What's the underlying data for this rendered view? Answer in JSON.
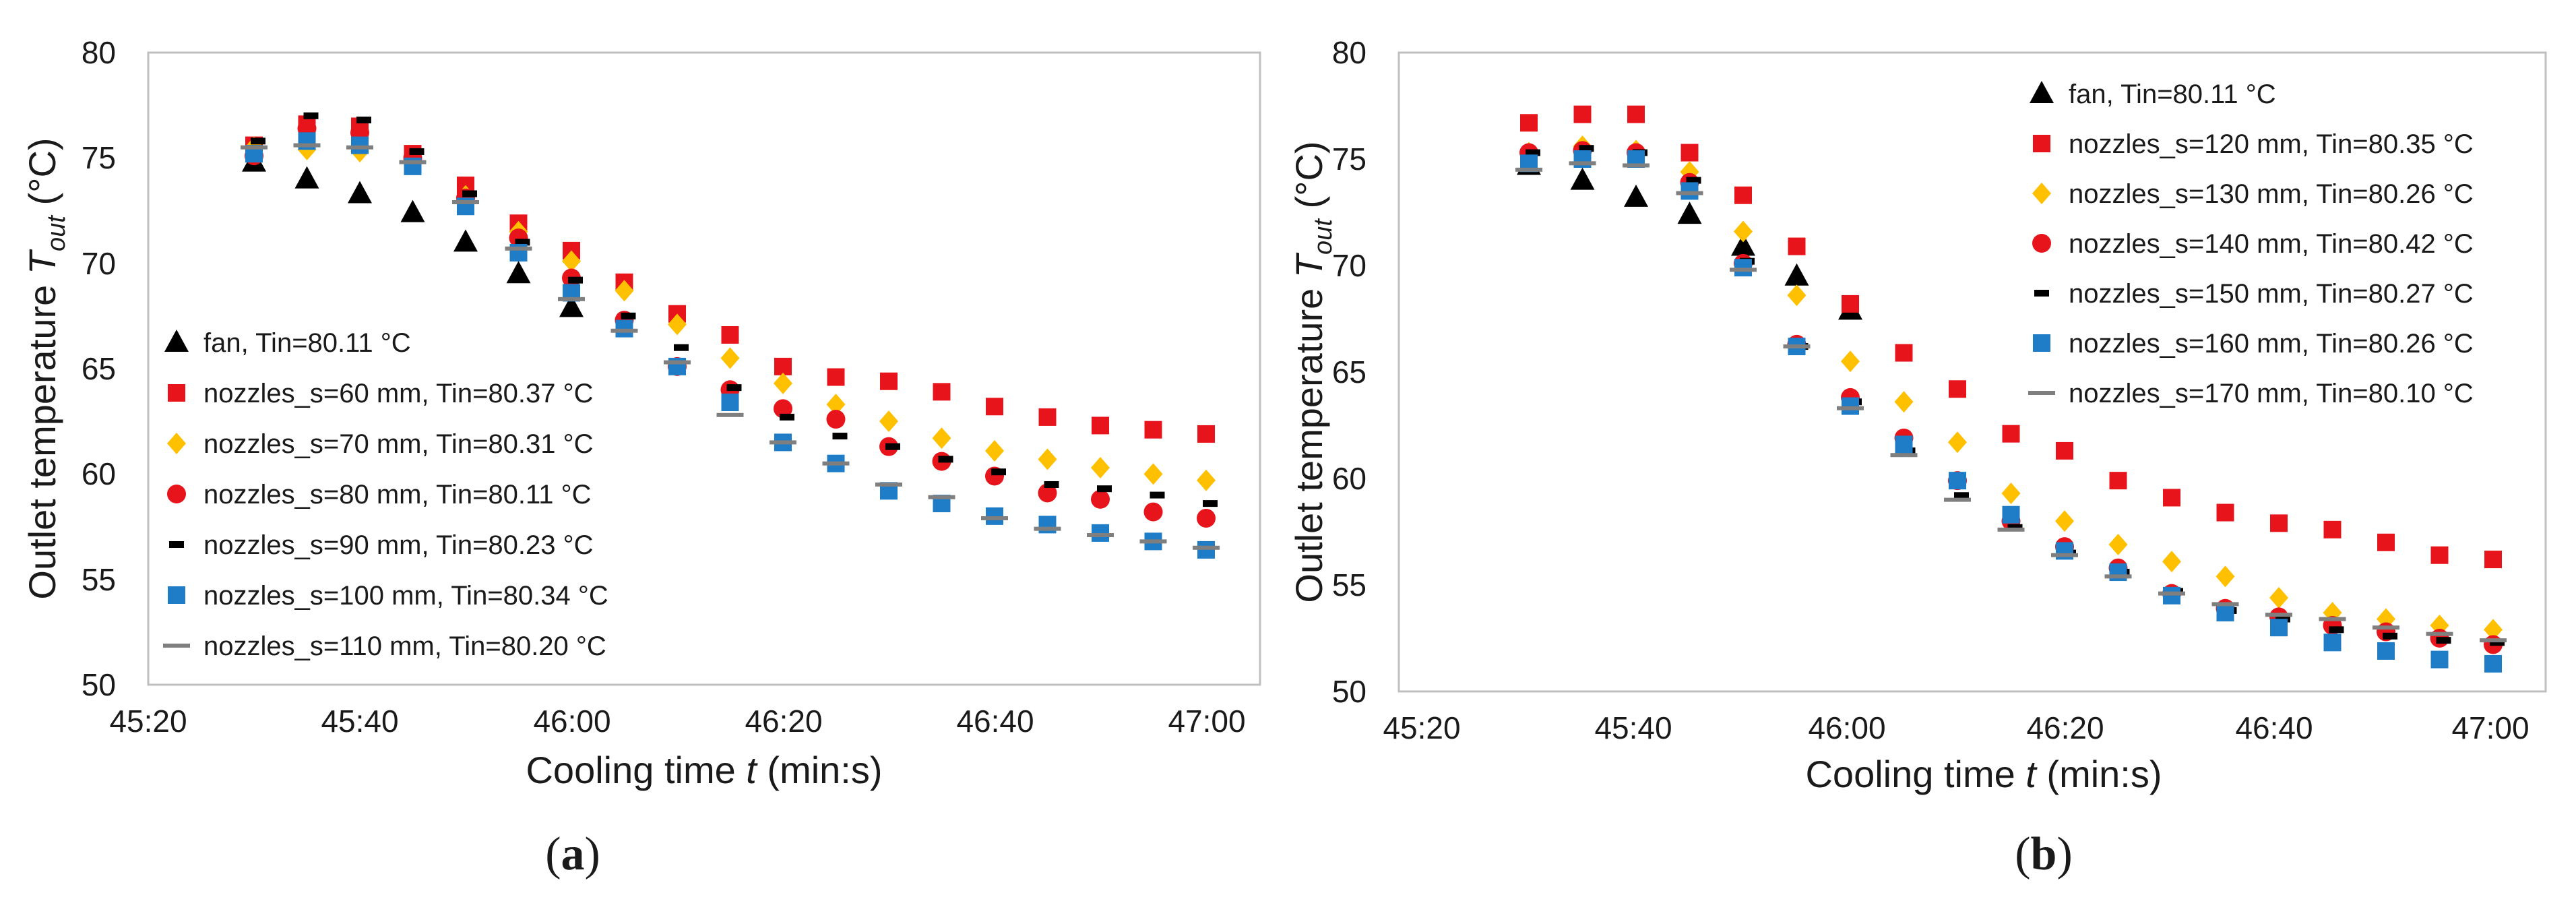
{
  "figure": {
    "colors": {
      "fan": "#000000",
      "red": "#E8141C",
      "yellow": "#FFC000",
      "black_dash": "#000000",
      "blue": "#1F7CC6",
      "gray": "#7F7F7F",
      "frame": "#BFBFBF"
    }
  },
  "chart_data": [
    {
      "type": "scatter",
      "panel_label": "(a)",
      "panel_label_parts": [
        "(",
        "a",
        ")"
      ],
      "xlabel_parts": [
        "Cooling time ",
        "t",
        " (min:s)"
      ],
      "ylabel_parts": [
        "Outlet temperature ",
        "T",
        "out",
        " (°C)"
      ],
      "x_unit": "seconds from 45:20",
      "xlim": [
        0,
        105
      ],
      "ylim": [
        50,
        80
      ],
      "x_ticks": [
        0,
        20,
        40,
        60,
        80,
        100
      ],
      "x_tick_labels": [
        "45:20",
        "45:40",
        "46:00",
        "46:20",
        "46:40",
        "47:00"
      ],
      "y_ticks": [
        50,
        55,
        60,
        65,
        70,
        75,
        80
      ],
      "y_tick_labels": [
        "50",
        "55",
        "60",
        "65",
        "70",
        "75",
        "80"
      ],
      "grid": false,
      "legend_position": "bottom-left",
      "series": [
        {
          "name": "fan, Tin=80.11 °C",
          "marker": "triangle",
          "color": "#000000",
          "x": [
            10,
            15,
            20,
            25,
            30,
            35,
            40
          ],
          "y": [
            74.8,
            74.0,
            73.3,
            72.4,
            71.0,
            69.5,
            67.9
          ]
        },
        {
          "name": "nozzles_s=60 mm, Tin=80.37 °C",
          "marker": "square",
          "color": "#E8141C",
          "x": [
            10,
            15,
            20,
            25,
            30,
            35,
            40,
            45,
            50,
            55,
            60,
            65,
            70,
            75,
            80,
            85,
            90,
            95,
            100
          ],
          "y": [
            75.6,
            76.6,
            76.5,
            75.2,
            73.7,
            71.9,
            70.6,
            69.1,
            67.6,
            66.6,
            65.1,
            64.6,
            64.4,
            63.9,
            63.2,
            62.7,
            62.3,
            62.1,
            61.9
          ]
        },
        {
          "name": "nozzles_s=70 mm, Tin=80.31 °C",
          "marker": "diamond",
          "color": "#FFC000",
          "x": [
            10,
            15,
            20,
            25,
            30,
            35,
            40,
            45,
            50,
            55,
            60,
            65,
            70,
            75,
            80,
            85,
            90,
            95,
            100
          ],
          "y": [
            75.5,
            75.4,
            75.3,
            74.9,
            73.2,
            71.5,
            70.1,
            68.7,
            67.1,
            65.5,
            64.3,
            63.3,
            62.5,
            61.7,
            61.1,
            60.7,
            60.3,
            60.0,
            59.7
          ]
        },
        {
          "name": "nozzles_s=80 mm, Tin=80.11 °C",
          "marker": "circle",
          "color": "#E8141C",
          "x": [
            10,
            15,
            20,
            25,
            30,
            35,
            40,
            45,
            50,
            55,
            60,
            65,
            70,
            75,
            80,
            85,
            90,
            95,
            100
          ],
          "y": [
            75.1,
            76.4,
            76.2,
            75.0,
            73.1,
            71.2,
            69.3,
            67.3,
            65.1,
            64.0,
            63.1,
            62.6,
            61.3,
            60.6,
            59.9,
            59.1,
            58.8,
            58.2,
            57.9
          ]
        },
        {
          "name": "nozzles_s=90 mm, Tin=80.23 °C",
          "marker": "dash",
          "color": "#000000",
          "x": [
            10,
            15,
            20,
            25,
            30,
            35,
            40,
            45,
            50,
            55,
            60,
            65,
            70,
            75,
            80,
            85,
            90,
            95,
            100
          ],
          "y": [
            75.8,
            77.0,
            76.8,
            75.3,
            73.3,
            71.0,
            69.2,
            67.5,
            66.0,
            64.1,
            62.7,
            61.8,
            61.3,
            60.7,
            60.1,
            59.5,
            59.3,
            59.0,
            58.6
          ]
        },
        {
          "name": "nozzles_s=100 mm, Tin=80.34 °C",
          "marker": "square",
          "color": "#1F7CC6",
          "x": [
            10,
            15,
            20,
            25,
            30,
            35,
            40,
            45,
            50,
            55,
            60,
            65,
            70,
            75,
            80,
            85,
            90,
            95,
            100
          ],
          "y": [
            75.2,
            75.8,
            75.6,
            74.6,
            72.7,
            70.5,
            68.6,
            66.9,
            65.1,
            63.4,
            61.5,
            60.5,
            59.2,
            58.6,
            58.0,
            57.6,
            57.2,
            56.8,
            56.4
          ]
        },
        {
          "name": "nozzles_s=110 mm, Tin=80.20 °C",
          "marker": "gray-dash",
          "color": "#7F7F7F",
          "x": [
            10,
            15,
            20,
            25,
            30,
            35,
            40,
            45,
            50,
            55,
            60,
            65,
            70,
            75,
            80,
            85,
            90,
            95,
            100
          ],
          "y": [
            75.5,
            75.6,
            75.5,
            74.8,
            72.9,
            70.7,
            68.3,
            66.8,
            65.3,
            62.8,
            61.5,
            60.5,
            59.5,
            58.9,
            57.9,
            57.4,
            57.1,
            56.8,
            56.5
          ]
        }
      ]
    },
    {
      "type": "scatter",
      "panel_label": "(b)",
      "panel_label_parts": [
        "(",
        "b",
        ")"
      ],
      "xlabel_parts": [
        "Cooling time ",
        "t",
        " (min:s)"
      ],
      "ylabel_parts": [
        "Outlet temperature ",
        "T",
        "out",
        " (°C)"
      ],
      "x_unit": "seconds from 45:20",
      "xlim": [
        0,
        105
      ],
      "ylim": [
        50,
        80
      ],
      "x_ticks": [
        0,
        20,
        40,
        60,
        80,
        100
      ],
      "x_tick_labels": [
        "45:20",
        "45:40",
        "46:00",
        "46:20",
        "46:40",
        "47:00"
      ],
      "y_ticks": [
        50,
        55,
        60,
        65,
        70,
        75,
        80
      ],
      "y_tick_labels": [
        "50",
        "55",
        "60",
        "65",
        "70",
        "75",
        "80"
      ],
      "grid": false,
      "legend_position": "top-right",
      "series": [
        {
          "name": "fan, Tin=80.11 °C",
          "marker": "triangle",
          "color": "#000000",
          "x": [
            10,
            15,
            20,
            25,
            30,
            35,
            40
          ],
          "y": [
            74.7,
            74.0,
            73.2,
            72.4,
            70.9,
            69.5,
            67.9
          ]
        },
        {
          "name": "nozzles_s=120 mm, Tin=80.35 °C",
          "marker": "square",
          "color": "#E8141C",
          "x": [
            10,
            15,
            20,
            25,
            30,
            35,
            40,
            45,
            50,
            55,
            60,
            65,
            70,
            75,
            80,
            85,
            90,
            95,
            100
          ],
          "y": [
            76.7,
            77.1,
            77.1,
            75.3,
            73.3,
            70.9,
            68.2,
            65.9,
            64.2,
            62.1,
            61.3,
            59.9,
            59.1,
            58.4,
            57.9,
            57.6,
            57.0,
            56.4,
            56.2
          ]
        },
        {
          "name": "nozzles_s=130 mm, Tin=80.26 °C",
          "marker": "diamond",
          "color": "#FFC000",
          "x": [
            10,
            15,
            20,
            25,
            30,
            35,
            40,
            45,
            50,
            55,
            60,
            65,
            70,
            75,
            80,
            85,
            90,
            95,
            100
          ],
          "y": [
            75.3,
            75.6,
            75.4,
            74.4,
            71.6,
            68.6,
            65.5,
            63.6,
            61.7,
            59.3,
            58.0,
            56.9,
            56.1,
            55.4,
            54.4,
            53.7,
            53.4,
            53.1,
            52.9
          ]
        },
        {
          "name": "nozzles_s=140 mm, Tin=80.42 °C",
          "marker": "circle",
          "color": "#E8141C",
          "x": [
            10,
            15,
            20,
            25,
            30,
            35,
            40,
            45,
            50,
            55,
            60,
            65,
            70,
            75,
            80,
            85,
            90,
            95,
            100
          ],
          "y": [
            75.3,
            75.4,
            75.3,
            73.9,
            70.1,
            66.3,
            63.8,
            61.9,
            59.9,
            58.0,
            56.8,
            55.8,
            54.6,
            53.9,
            53.5,
            53.1,
            52.8,
            52.5,
            52.2
          ]
        },
        {
          "name": "nozzles_s=150 mm, Tin=80.27 °C",
          "marker": "dash",
          "color": "#000000",
          "x": [
            10,
            15,
            20,
            25,
            30,
            35,
            40,
            45,
            50,
            55,
            60,
            65,
            70,
            75,
            80,
            85,
            90,
            95,
            100
          ],
          "y": [
            75.3,
            75.5,
            75.3,
            74.0,
            70.2,
            66.2,
            63.6,
            61.3,
            59.2,
            57.7,
            56.5,
            55.6,
            54.7,
            53.8,
            53.4,
            52.9,
            52.6,
            52.4,
            52.3
          ]
        },
        {
          "name": "nozzles_s=160 mm, Tin=80.26 °C",
          "marker": "square",
          "color": "#1F7CC6",
          "x": [
            10,
            15,
            20,
            25,
            30,
            35,
            40,
            45,
            50,
            55,
            60,
            65,
            70,
            75,
            80,
            85,
            90,
            95,
            100
          ],
          "y": [
            74.8,
            75.0,
            75.0,
            73.5,
            69.9,
            66.2,
            63.4,
            61.6,
            59.9,
            58.3,
            56.6,
            55.6,
            54.5,
            53.7,
            53.0,
            52.3,
            51.9,
            51.5,
            51.3
          ]
        },
        {
          "name": "nozzles_s=170 mm, Tin=80.10 °C",
          "marker": "gray-dash",
          "color": "#7F7F7F",
          "x": [
            10,
            15,
            20,
            25,
            30,
            35,
            40,
            45,
            50,
            55,
            60,
            65,
            70,
            75,
            80,
            85,
            90,
            95,
            100
          ],
          "y": [
            74.5,
            74.8,
            74.7,
            73.4,
            69.8,
            66.2,
            63.3,
            61.1,
            59.0,
            57.6,
            56.4,
            55.4,
            54.6,
            54.1,
            53.6,
            53.4,
            53.0,
            52.7,
            52.4
          ]
        }
      ]
    }
  ]
}
